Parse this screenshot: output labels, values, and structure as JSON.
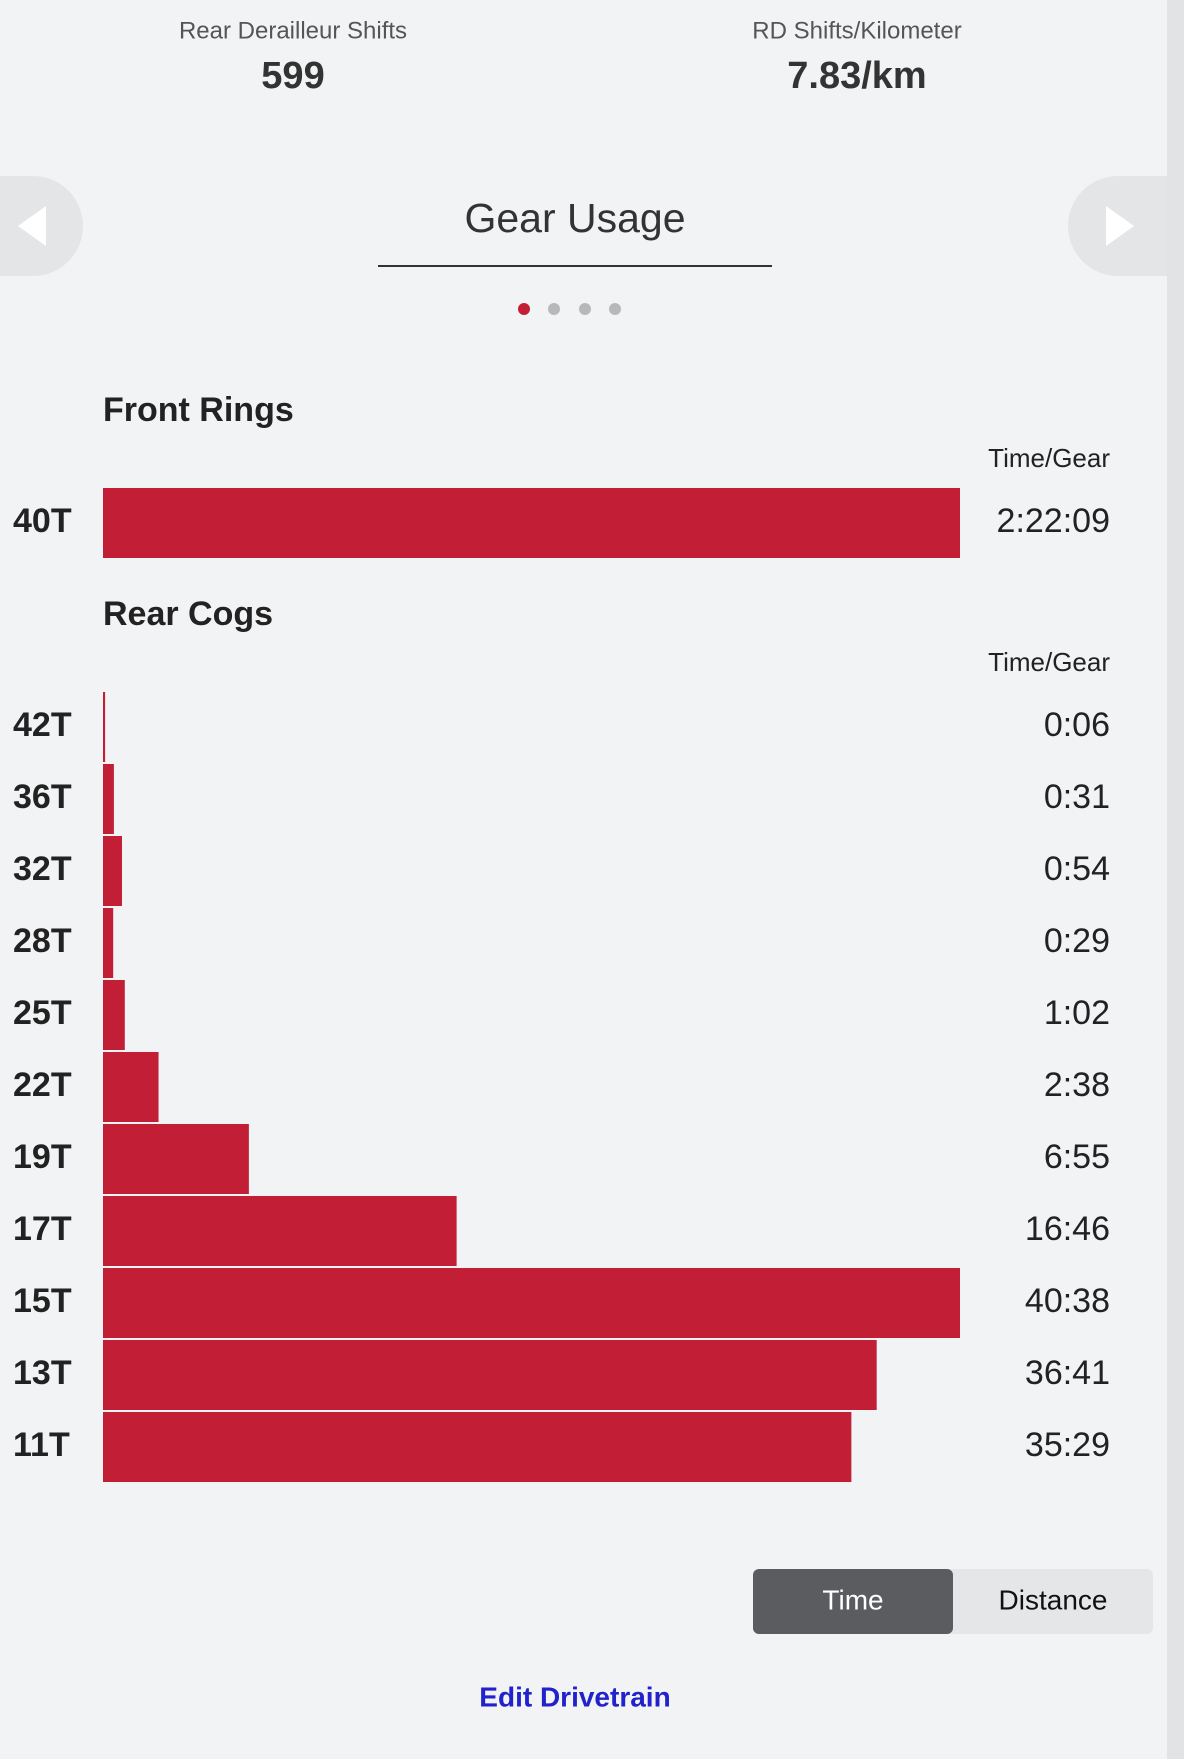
{
  "stats": [
    {
      "label": "Rear Derailleur Shifts",
      "value": "599"
    },
    {
      "label": "RD Shifts/Kilometer",
      "value": "7.83/km"
    }
  ],
  "carousel": {
    "title": "Gear Usage"
  },
  "front_rings": {
    "type": "bar",
    "title": "Front Rings",
    "column_header": "Time/Gear",
    "color": "#c21f37",
    "categories": [
      "40T"
    ],
    "values": [
      8529
    ],
    "value_labels": [
      "2:22:09"
    ]
  },
  "rear_cogs": {
    "type": "bar",
    "title": "Rear Cogs",
    "column_header": "Time/Gear",
    "color": "#c21f37",
    "categories": [
      "42T",
      "36T",
      "32T",
      "28T",
      "25T",
      "22T",
      "19T",
      "17T",
      "15T",
      "13T",
      "11T"
    ],
    "values": [
      6,
      31,
      54,
      29,
      62,
      158,
      415,
      1006,
      2438,
      2201,
      2129
    ],
    "value_labels": [
      "0:06",
      "0:31",
      "0:54",
      "0:29",
      "1:02",
      "2:38",
      "6:55",
      "16:46",
      "40:38",
      "36:41",
      "35:29"
    ]
  },
  "toggle": [
    "Time",
    "Distance"
  ],
  "link": "Edit Drivetrain"
}
